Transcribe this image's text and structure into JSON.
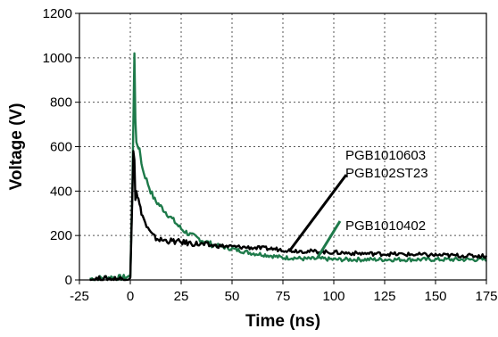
{
  "chart_data": {
    "type": "line",
    "title": "",
    "xlabel": "Time (ns)",
    "ylabel": "Voltage (V)",
    "xlim": [
      -25,
      175
    ],
    "ylim": [
      0,
      1200
    ],
    "grid": true,
    "x_ticks": [
      -25,
      0,
      25,
      50,
      75,
      100,
      125,
      150,
      175
    ],
    "y_ticks": [
      0,
      200,
      400,
      600,
      800,
      1000,
      1200
    ],
    "x_tick_labels": [
      "-25",
      "0",
      "25",
      "50",
      "75",
      "100",
      "125",
      "150",
      "175"
    ],
    "y_tick_labels": [
      "0",
      "200",
      "400",
      "600",
      "800",
      "1000",
      "1200"
    ],
    "series": [
      {
        "name": "PGB1010402",
        "color": "#1e7a4a",
        "points": [
          [
            -20,
            5
          ],
          [
            -15,
            8
          ],
          [
            -10,
            12
          ],
          [
            -5,
            10
          ],
          [
            -2,
            12
          ],
          [
            0,
            15
          ],
          [
            1,
            400
          ],
          [
            1.5,
            700
          ],
          [
            2,
            1020
          ],
          [
            2.5,
            720
          ],
          [
            3,
            620
          ],
          [
            4,
            600
          ],
          [
            5,
            560
          ],
          [
            6,
            500
          ],
          [
            8,
            450
          ],
          [
            10,
            400
          ],
          [
            12,
            360
          ],
          [
            15,
            330
          ],
          [
            18,
            300
          ],
          [
            20,
            280
          ],
          [
            25,
            230
          ],
          [
            30,
            200
          ],
          [
            35,
            180
          ],
          [
            40,
            160
          ],
          [
            45,
            150
          ],
          [
            50,
            140
          ],
          [
            55,
            130
          ],
          [
            60,
            120
          ],
          [
            65,
            115
          ],
          [
            70,
            108
          ],
          [
            75,
            100
          ],
          [
            80,
            100
          ],
          [
            85,
            95
          ],
          [
            90,
            95
          ],
          [
            95,
            95
          ],
          [
            100,
            92
          ],
          [
            110,
            92
          ],
          [
            120,
            92
          ],
          [
            130,
            92
          ],
          [
            140,
            92
          ],
          [
            150,
            92
          ],
          [
            160,
            92
          ],
          [
            170,
            92
          ],
          [
            175,
            92
          ]
        ]
      },
      {
        "name": "PGB1010603",
        "color": "#000000",
        "points": [
          [
            -20,
            3
          ],
          [
            -10,
            5
          ],
          [
            -5,
            5
          ],
          [
            -2,
            8
          ],
          [
            0,
            10
          ],
          [
            0.8,
            300
          ],
          [
            1.5,
            580
          ],
          [
            2,
            540
          ],
          [
            2.5,
            360
          ],
          [
            3,
            400
          ],
          [
            4,
            360
          ],
          [
            5,
            320
          ],
          [
            6,
            290
          ],
          [
            8,
            240
          ],
          [
            10,
            210
          ],
          [
            12,
            190
          ],
          [
            15,
            180
          ],
          [
            20,
            175
          ],
          [
            25,
            170
          ],
          [
            30,
            165
          ],
          [
            35,
            160
          ],
          [
            40,
            155
          ],
          [
            50,
            150
          ],
          [
            60,
            145
          ],
          [
            70,
            140
          ],
          [
            75,
            136
          ],
          [
            80,
            132
          ],
          [
            90,
            128
          ],
          [
            100,
            124
          ],
          [
            110,
            120
          ],
          [
            120,
            118
          ],
          [
            130,
            116
          ],
          [
            140,
            114
          ],
          [
            150,
            112
          ],
          [
            160,
            110
          ],
          [
            170,
            108
          ],
          [
            175,
            108
          ]
        ]
      }
    ],
    "annotations": [
      {
        "lines": [
          "PGB1010603",
          "PGB102ST23"
        ],
        "x": 78,
        "y": 128
      },
      {
        "lines": [
          "PGB1010402"
        ],
        "x": 92,
        "y": 100
      }
    ]
  }
}
